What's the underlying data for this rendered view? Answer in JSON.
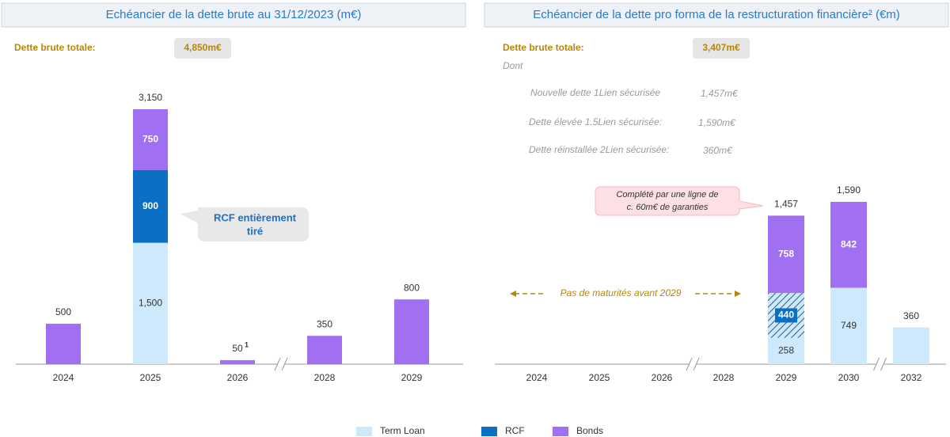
{
  "chart_data": [
    {
      "type": "stacked_bar",
      "title": "Echéancier de la dette brute au 31/12/2023 (m€)",
      "total_label": "Dette brute totale:",
      "total_value": "4,850m€",
      "categories": [
        "2024",
        "2025",
        "2026",
        "2028",
        "2029"
      ],
      "axis_break_after": [
        2
      ],
      "series": [
        {
          "name": "Term Loan",
          "color": "#cde9fb",
          "values": [
            null,
            1500,
            null,
            null,
            null
          ],
          "value_labels": [
            null,
            "1,500",
            null,
            null,
            null
          ]
        },
        {
          "name": "RCF",
          "color": "#0b6fc4",
          "values": [
            null,
            900,
            null,
            null,
            null
          ],
          "value_labels": [
            null,
            "900",
            null,
            null,
            null
          ]
        },
        {
          "name": "Bonds",
          "color": "#a06ff2",
          "values": [
            500,
            750,
            50,
            350,
            800
          ],
          "value_labels": [
            null,
            "750",
            null,
            null,
            null
          ]
        }
      ],
      "total_labels": [
        "500",
        "3,150",
        "50",
        "350",
        "800"
      ],
      "total_footnotes": [
        null,
        null,
        "1",
        null,
        null
      ],
      "callout": [
        "RCF entièrement",
        "tiré"
      ]
    },
    {
      "type": "stacked_bar",
      "title": "Echéancier de la dette pro forma de la restructuration financière² (€m)",
      "total_label": "Dette brute totale:",
      "total_value": "3,407m€",
      "subtitle": "Dont",
      "items": [
        {
          "label": "Nouvelle dette 1Lien sécurisée",
          "value": "1,457m€"
        },
        {
          "label": "Dette élevée 1.5Lien sécurisée:",
          "value": "1,590m€"
        },
        {
          "label": "Dette réinstallée 2Lien sécurisée:",
          "value": "360m€"
        }
      ],
      "categories": [
        "2024",
        "2025",
        "2026",
        "2028",
        "2029",
        "2030",
        "2032"
      ],
      "axis_break_after": [
        2,
        5
      ],
      "series": [
        {
          "color": "#cde9fb",
          "values": [
            null,
            null,
            null,
            null,
            258,
            749,
            360
          ],
          "value_labels": [
            null,
            null,
            null,
            null,
            "258",
            "749",
            null
          ]
        },
        {
          "color": "#0b6fc4",
          "pattern": "hatch",
          "values": [
            null,
            null,
            null,
            null,
            440,
            null,
            null
          ],
          "value_labels": [
            null,
            null,
            null,
            null,
            "440",
            null,
            null
          ]
        },
        {
          "color": "#a06ff2",
          "values": [
            null,
            null,
            null,
            null,
            758,
            842,
            null
          ],
          "value_labels": [
            null,
            null,
            null,
            null,
            "758",
            "842",
            null
          ]
        }
      ],
      "total_labels": [
        null,
        null,
        null,
        null,
        "1,457",
        "1,590",
        "360"
      ],
      "callout": [
        "Complété par une ligne de",
        "c. 60m€ de garanties"
      ],
      "annotation": "Pas de maturités avant 2029"
    }
  ]
}
